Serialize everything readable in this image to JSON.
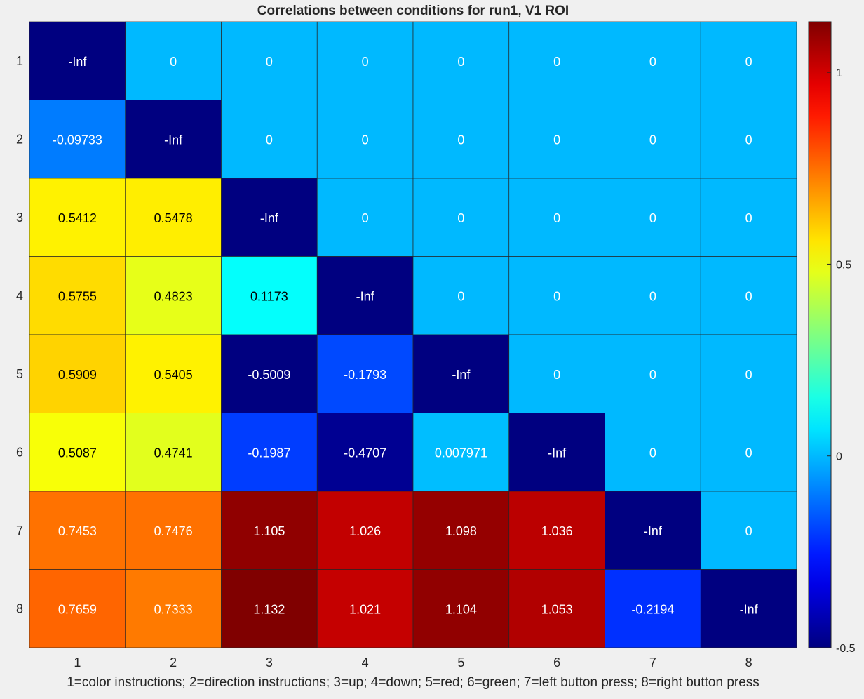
{
  "chart_data": {
    "type": "heatmap",
    "title": "Correlations between conditions for run1, V1 ROI",
    "xlabel": "1=color instructions; 2=direction instructions; 3=up; 4=down; 5=red; 6=green; 7=left button press; 8=right button press",
    "ylabel": "",
    "x_categories": [
      "1",
      "2",
      "3",
      "4",
      "5",
      "6",
      "7",
      "8"
    ],
    "y_categories": [
      "1",
      "2",
      "3",
      "4",
      "5",
      "6",
      "7",
      "8"
    ],
    "values": [
      [
        null,
        0,
        0,
        0,
        0,
        0,
        0,
        0
      ],
      [
        -0.09733,
        null,
        0,
        0,
        0,
        0,
        0,
        0
      ],
      [
        0.5412,
        0.5478,
        null,
        0,
        0,
        0,
        0,
        0
      ],
      [
        0.5755,
        0.4823,
        0.1173,
        null,
        0,
        0,
        0,
        0
      ],
      [
        0.5909,
        0.5405,
        -0.5009,
        -0.1793,
        null,
        0,
        0,
        0
      ],
      [
        0.5087,
        0.4741,
        -0.1987,
        -0.4707,
        0.007971,
        null,
        0,
        0
      ],
      [
        0.7453,
        0.7476,
        1.105,
        1.026,
        1.098,
        1.036,
        null,
        0
      ],
      [
        0.7659,
        0.7333,
        1.132,
        1.021,
        1.104,
        1.053,
        -0.2194,
        null
      ]
    ],
    "labels": [
      [
        "-Inf",
        "0",
        "0",
        "0",
        "0",
        "0",
        "0",
        "0"
      ],
      [
        "-0.09733",
        "-Inf",
        "0",
        "0",
        "0",
        "0",
        "0",
        "0"
      ],
      [
        "0.5412",
        "0.5478",
        "-Inf",
        "0",
        "0",
        "0",
        "0",
        "0"
      ],
      [
        "0.5755",
        "0.4823",
        "0.1173",
        "-Inf",
        "0",
        "0",
        "0",
        "0"
      ],
      [
        "0.5909",
        "0.5405",
        "-0.5009",
        "-0.1793",
        "-Inf",
        "0",
        "0",
        "0"
      ],
      [
        "0.5087",
        "0.4741",
        "-0.1987",
        "-0.4707",
        "0.007971",
        "-Inf",
        "0",
        "0"
      ],
      [
        "0.7453",
        "0.7476",
        "1.105",
        "1.026",
        "1.098",
        "1.036",
        "-Inf",
        "0"
      ],
      [
        "0.7659",
        "0.7333",
        "1.132",
        "1.021",
        "1.104",
        "1.053",
        "-0.2194",
        "-Inf"
      ]
    ],
    "colormap": "jet",
    "clim": [
      -0.5,
      1.132
    ],
    "colorbar": {
      "position": "right",
      "ticks": [
        -0.5,
        0,
        0.5,
        1
      ],
      "tick_labels": [
        "-0.5",
        "0",
        "0.5",
        "1"
      ]
    },
    "grid": false
  }
}
